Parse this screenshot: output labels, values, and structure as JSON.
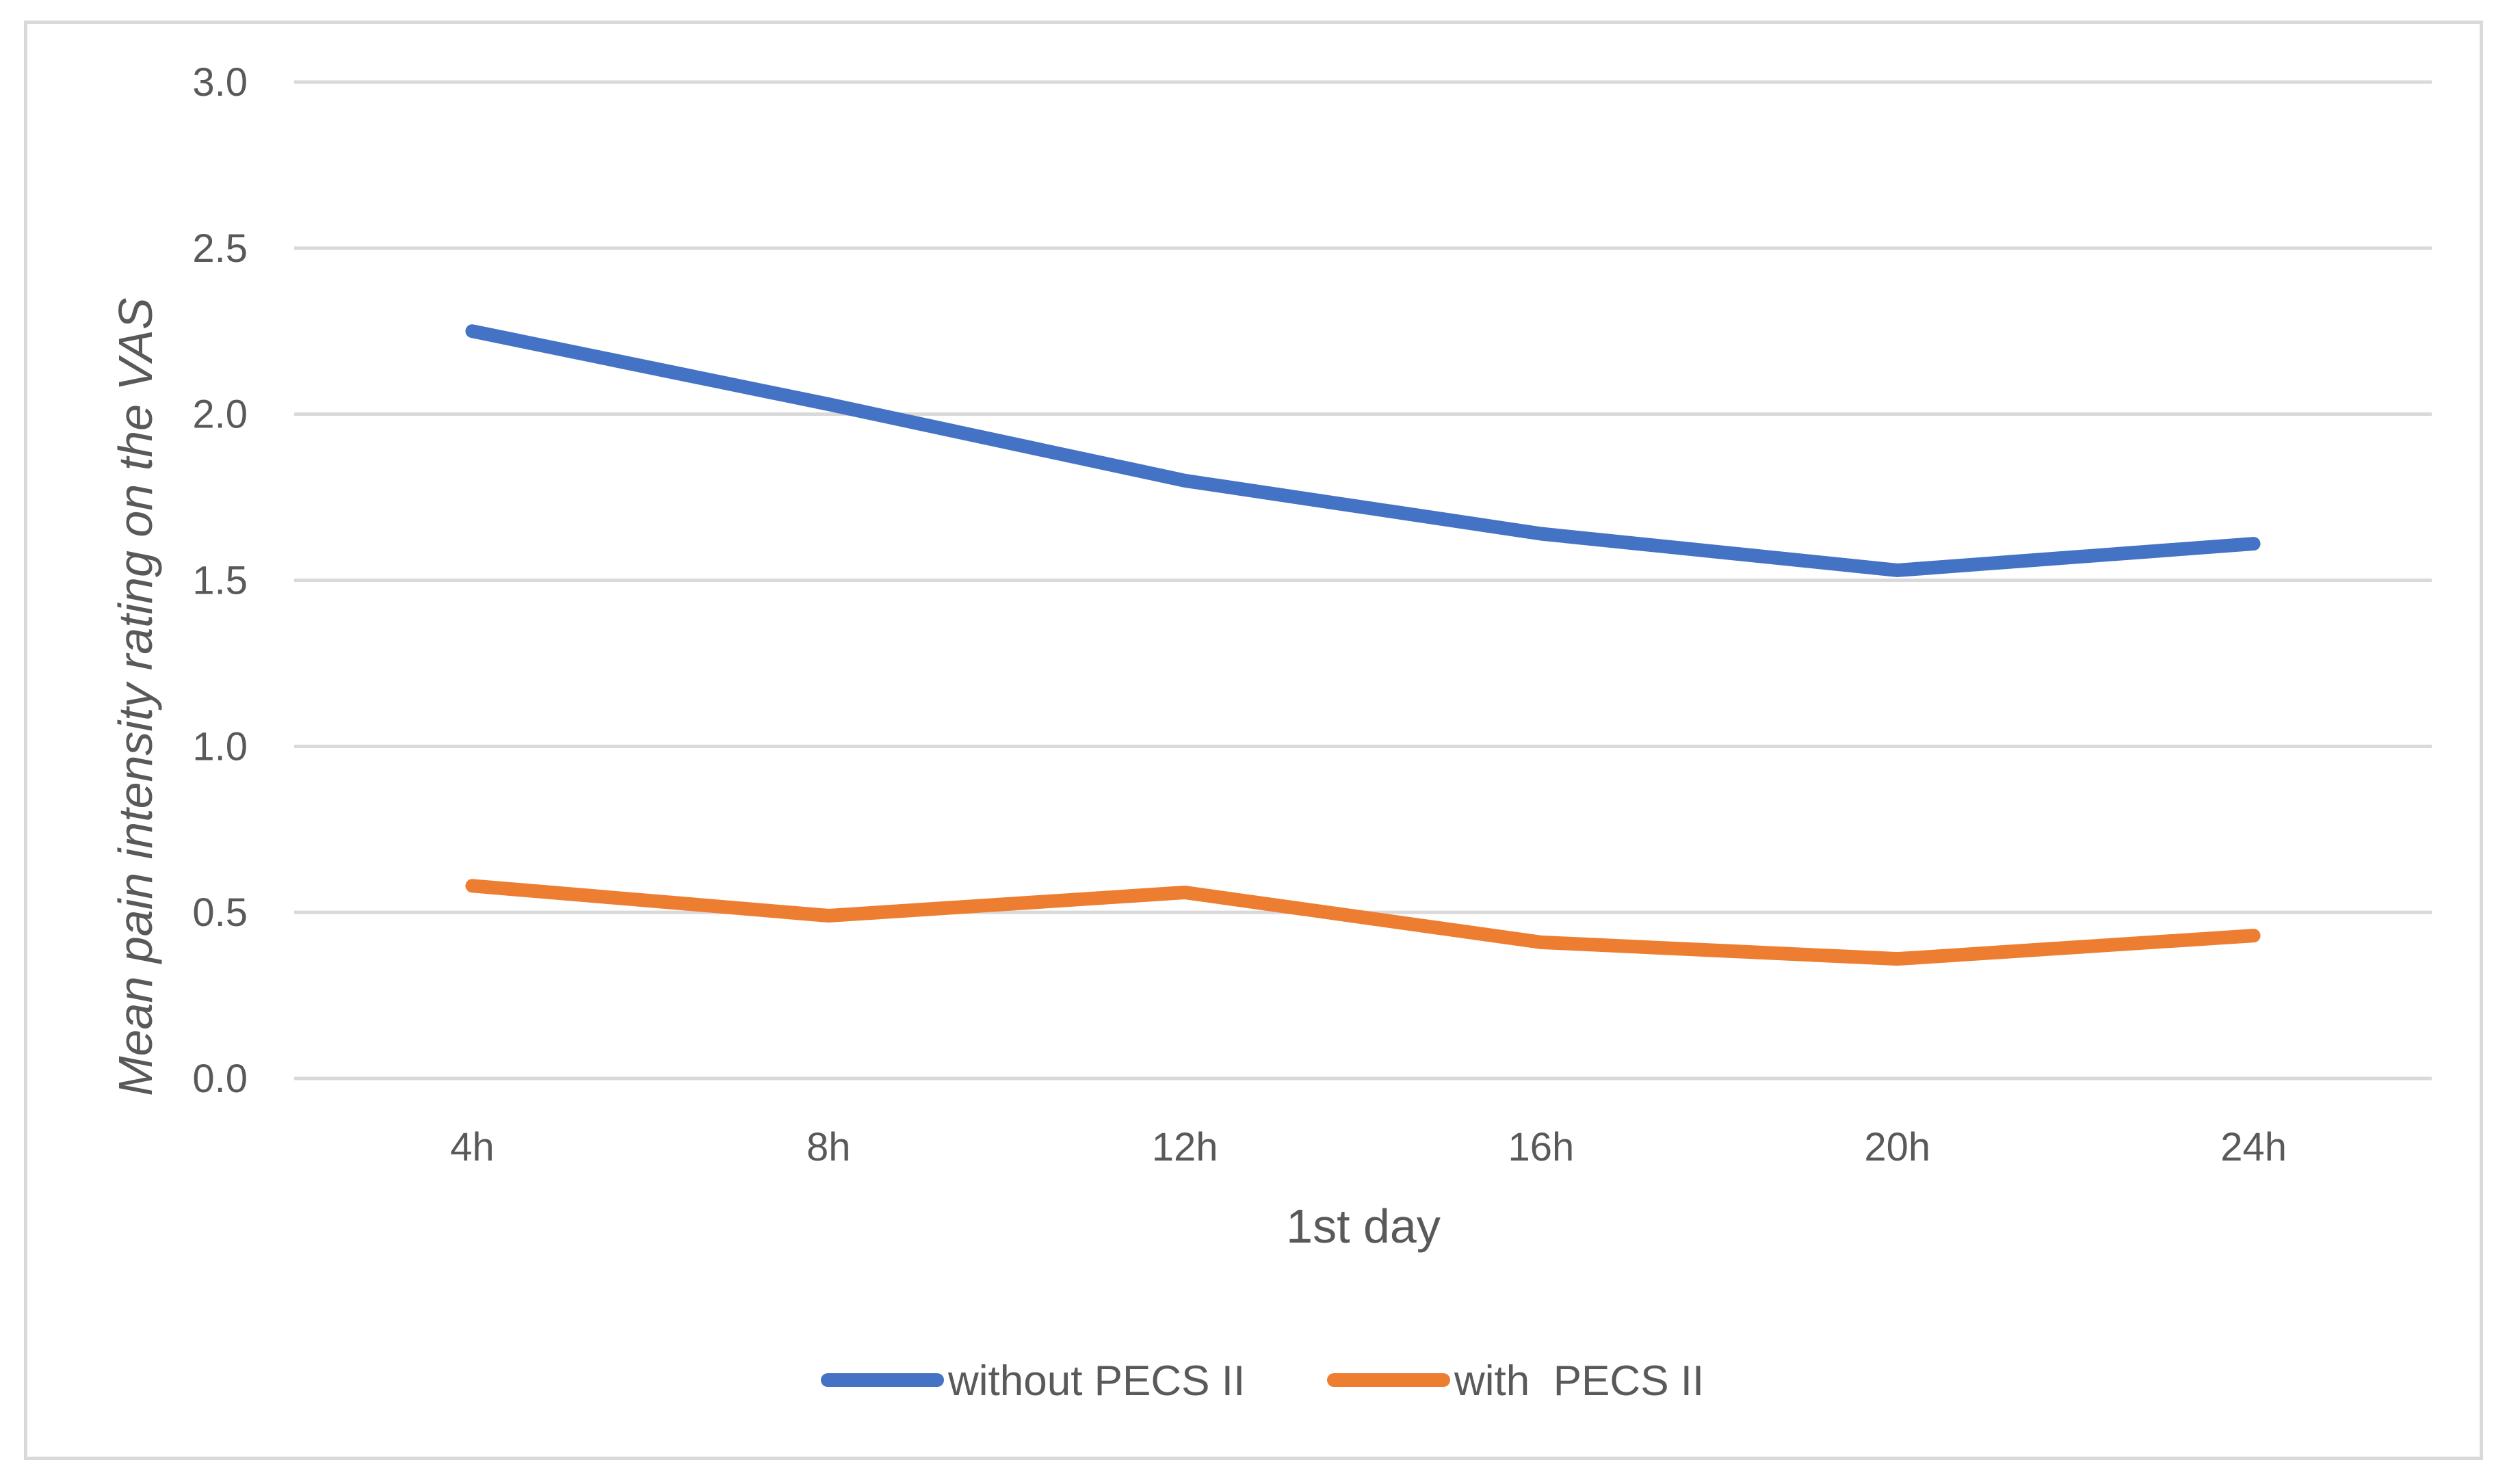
{
  "chart_data": {
    "type": "line",
    "title": "",
    "xlabel": "1st day",
    "ylabel": "Mean pain intensity rating on the  VAS",
    "categories": [
      "4h",
      "8h",
      "12h",
      "16h",
      "20h",
      "24h"
    ],
    "ylim": [
      0,
      3.0
    ],
    "yticks": [
      "0.0",
      "0.5",
      "1.0",
      "1.5",
      "2.0",
      "2.5",
      "3.0"
    ],
    "grid": true,
    "legend_position": "bottom",
    "series": [
      {
        "name": "without PECS II",
        "color": "#4472c4",
        "values": [
          2.25,
          2.03,
          1.8,
          1.64,
          1.53,
          1.61
        ]
      },
      {
        "name": "with  PECS II",
        "color": "#ed7d31",
        "values": [
          0.58,
          0.49,
          0.56,
          0.41,
          0.36,
          0.43
        ]
      }
    ]
  }
}
